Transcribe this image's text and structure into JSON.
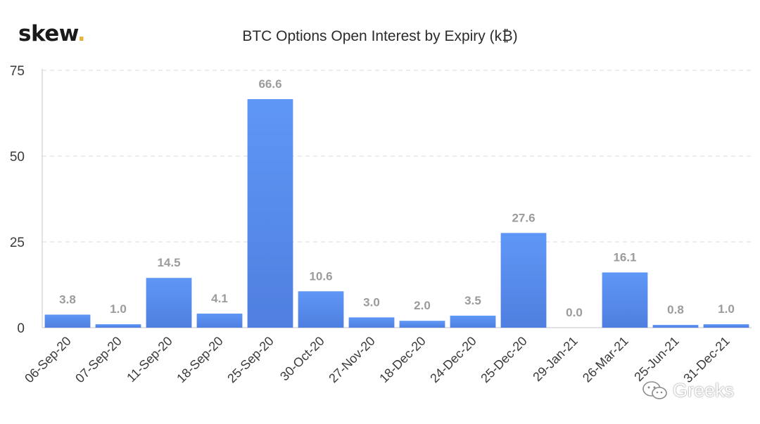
{
  "logo": {
    "text": "skew",
    "dot": "."
  },
  "watermark": {
    "icon": "wechat-icon",
    "text": "Greeks"
  },
  "colors": {
    "bar_top": "#5f97f6",
    "bar_bottom": "#4f7fe0",
    "label": "#9b9b9b",
    "axis_text": "#3a3a3a",
    "grid": "#e2e2e2",
    "axis": "#cfcfcf"
  },
  "chart_data": {
    "type": "bar",
    "title": "BTC Options Open Interest by Expiry (k₿)",
    "xlabel": "",
    "ylabel": "",
    "ylim": [
      0,
      75
    ],
    "yticks": [
      0,
      25,
      50,
      75
    ],
    "grid": true,
    "categories": [
      "06-Sep-20",
      "07-Sep-20",
      "11-Sep-20",
      "18-Sep-20",
      "25-Sep-20",
      "30-Oct-20",
      "27-Nov-20",
      "18-Dec-20",
      "24-Dec-20",
      "25-Dec-20",
      "29-Jan-21",
      "26-Mar-21",
      "25-Jun-21",
      "31-Dec-21"
    ],
    "values": [
      3.8,
      1.0,
      14.5,
      4.1,
      66.6,
      10.6,
      3.0,
      2.0,
      3.5,
      27.6,
      0.0,
      16.1,
      0.8,
      1.0
    ],
    "data_labels": [
      "3.8",
      "1.0",
      "14.5",
      "4.1",
      "66.6",
      "10.6",
      "3.0",
      "2.0",
      "3.5",
      "27.6",
      "0.0",
      "16.1",
      "0.8",
      "1.0"
    ]
  }
}
